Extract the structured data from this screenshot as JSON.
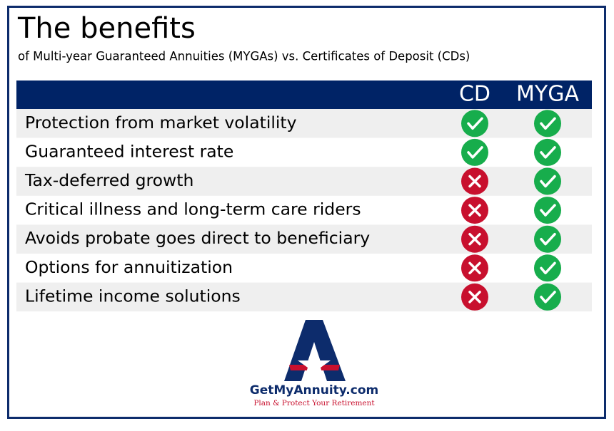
{
  "header": {
    "title": "The benefits",
    "subtitle": "of Multi-year Guaranteed Annuities (MYGAs) vs. Certificates of Deposit (CDs)"
  },
  "table": {
    "columns": [
      "CD",
      "MYGA"
    ],
    "rows": [
      {
        "label": "Protection from market volatility",
        "values": [
          true,
          true
        ]
      },
      {
        "label": "Guaranteed interest rate",
        "values": [
          true,
          true
        ]
      },
      {
        "label": "Tax-deferred growth",
        "values": [
          false,
          true
        ]
      },
      {
        "label": "Critical illness and long-term care riders",
        "values": [
          false,
          true
        ]
      },
      {
        "label": "Avoids probate goes direct to beneficiary",
        "values": [
          false,
          true
        ]
      },
      {
        "label": "Options for annuitization",
        "values": [
          false,
          true
        ]
      },
      {
        "label": "Lifetime income solutions",
        "values": [
          false,
          true
        ]
      }
    ]
  },
  "logo": {
    "name": "GetMyAnnuity.com",
    "tagline": "Plan & Protect Your Retirement"
  }
}
